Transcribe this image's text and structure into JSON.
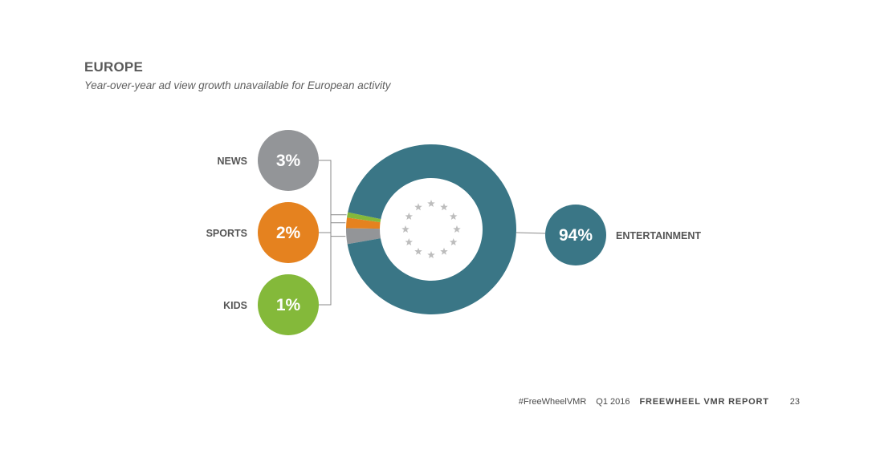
{
  "header": {
    "title": "EUROPE",
    "subtitle": "Year-over-year ad view growth unavailable for European activity"
  },
  "footer": {
    "hashtag": "#FreeWheelVMR",
    "period": "Q1 2016",
    "report": "FREEWHEEL VMR REPORT",
    "page": "23"
  },
  "chart_data": {
    "type": "pie",
    "style": "donut",
    "center_emblem": "eu-stars-icon",
    "slices": [
      {
        "label": "ENTERTAINMENT",
        "value": 94,
        "display": "94%",
        "color": "#3a7686"
      },
      {
        "label": "NEWS",
        "value": 3,
        "display": "3%",
        "color": "#939598"
      },
      {
        "label": "SPORTS",
        "value": 2,
        "display": "2%",
        "color": "#e5821f"
      },
      {
        "label": "KIDS",
        "value": 1,
        "display": "1%",
        "color": "#84b93a"
      }
    ]
  }
}
